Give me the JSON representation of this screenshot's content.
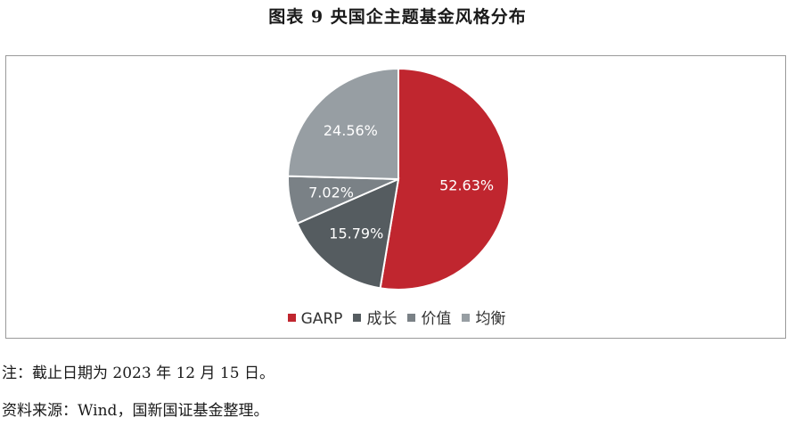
{
  "title": "图表 9  央国企主题基金风格分布",
  "chart_data": {
    "type": "pie",
    "title": "图表 9  央国企主题基金风格分布",
    "categories": [
      "GARP",
      "成长",
      "价值",
      "均衡"
    ],
    "values": [
      52.63,
      15.79,
      7.02,
      24.56
    ],
    "labels": [
      "52.63%",
      "15.79%",
      "7.02%",
      "24.56%"
    ],
    "colors": [
      "#c0262f",
      "#555c60",
      "#7a8186",
      "#979ea3"
    ],
    "legend_position": "bottom"
  },
  "footnotes": {
    "note": "注：截止日期为 2023 年 12 月 15 日。",
    "source": "资料来源：Wind，国新国证基金整理。"
  }
}
